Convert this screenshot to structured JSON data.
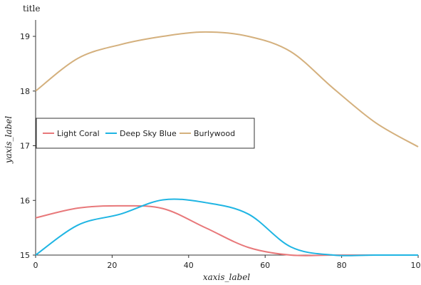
{
  "chart_data": {
    "type": "line",
    "title": "title",
    "xlabel": "xaxis_label",
    "ylabel": "yaxis_label",
    "xlim": [
      0,
      100
    ],
    "ylim": [
      15,
      19.3
    ],
    "x_ticks": [
      0,
      20,
      40,
      60,
      80,
      100
    ],
    "y_ticks": [
      15,
      16,
      17,
      18,
      19
    ],
    "grid": false,
    "legend_position": "center-left",
    "x": [
      0,
      11.1,
      22.2,
      33.3,
      44.4,
      55.6,
      66.7,
      77.8,
      88.9,
      100
    ],
    "series": [
      {
        "name": "Light Coral",
        "color": "#e8787a",
        "values": [
          15.68,
          15.86,
          15.9,
          15.85,
          15.5,
          15.14,
          15.0,
          15.0,
          15.0,
          15.0
        ]
      },
      {
        "name": "Deep Sky Blue",
        "color": "#1fb5e3",
        "values": [
          15.0,
          15.55,
          15.75,
          16.01,
          15.96,
          15.75,
          15.15,
          15.0,
          15.0,
          15.0
        ]
      },
      {
        "name": "Burlywood",
        "color": "#d4b07d",
        "values": [
          18.0,
          18.6,
          18.85,
          19.0,
          19.08,
          19.0,
          18.72,
          18.05,
          17.42,
          16.98
        ]
      }
    ]
  }
}
